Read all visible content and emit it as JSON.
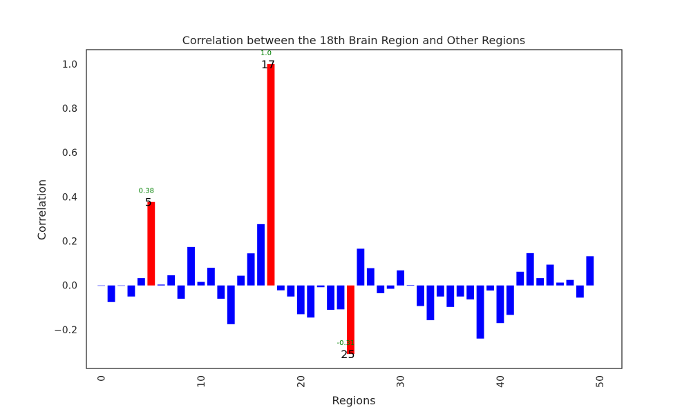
{
  "chart_data": {
    "type": "bar",
    "title": "Correlation between the 18th Brain Region and Other Regions",
    "xlabel": "Regions",
    "ylabel": "Correlation",
    "xlim": [
      -1.5,
      52.2
    ],
    "ylim": [
      -0.375,
      1.065
    ],
    "xticks": [
      0,
      10,
      20,
      30,
      40,
      50
    ],
    "yticks": [
      -0.2,
      0.0,
      0.2,
      0.4,
      0.6,
      0.8,
      1.0
    ],
    "ytick_labels": [
      "−0.2",
      "0.0",
      "0.2",
      "0.4",
      "0.6",
      "0.8",
      "1.0"
    ],
    "grid": false,
    "legend": false,
    "x": [
      0,
      1,
      2,
      3,
      4,
      5,
      6,
      7,
      8,
      9,
      10,
      11,
      12,
      13,
      14,
      15,
      16,
      17,
      18,
      19,
      20,
      21,
      22,
      23,
      24,
      25,
      26,
      27,
      28,
      29,
      30,
      31,
      32,
      33,
      34,
      35,
      36,
      37,
      38,
      39,
      40,
      41,
      42,
      43,
      44,
      45,
      46,
      47,
      48,
      49
    ],
    "values": [
      0.0,
      -0.075,
      0.0,
      -0.05,
      0.033,
      0.377,
      0.004,
      0.046,
      -0.06,
      0.174,
      0.016,
      0.08,
      -0.06,
      -0.175,
      0.044,
      0.145,
      0.277,
      1.0,
      -0.022,
      -0.05,
      -0.13,
      -0.145,
      -0.008,
      -0.11,
      -0.108,
      -0.31,
      0.166,
      0.078,
      -0.035,
      -0.015,
      0.068,
      0.002,
      -0.093,
      -0.157,
      -0.05,
      -0.097,
      -0.05,
      -0.063,
      -0.24,
      -0.023,
      -0.17,
      -0.133,
      0.062,
      0.146,
      0.033,
      0.094,
      0.013,
      0.025,
      -0.055,
      0.132
    ],
    "default_color": "#0000ff",
    "highlight_color": "#ff0000",
    "annotation_color": "#008000",
    "highlights": [
      {
        "index": 5,
        "index_label": "5",
        "value_label": "0.38"
      },
      {
        "index": 17,
        "index_label": "17",
        "value_label": "1.0"
      },
      {
        "index": 25,
        "index_label": "25",
        "value_label": "-0.31"
      }
    ]
  }
}
